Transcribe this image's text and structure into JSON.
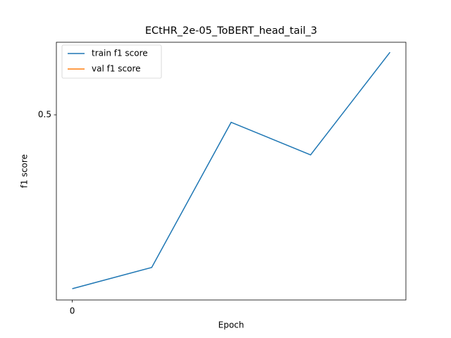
{
  "chart_data": {
    "type": "line",
    "title": "ECtHR_2e-05_ToBERT_head_tail_3",
    "xlabel": "Epoch",
    "ylabel": "f1 score",
    "x": [
      0,
      1,
      2,
      3,
      4
    ],
    "series": [
      {
        "name": "train f1 score",
        "color": "#1f77b4",
        "values": [
          0.361,
          0.378,
          0.494,
          0.468,
          0.55
        ]
      },
      {
        "name": "val f1 score",
        "color": "#ff7f0e",
        "values": [
          null,
          null,
          null,
          null,
          null
        ]
      }
    ],
    "xlim": [
      -0.2,
      4.2
    ],
    "xticks": [
      0
    ],
    "ylim": [
      0.352,
      0.558
    ],
    "yticks": [
      0.5
    ],
    "legend": "upper left"
  }
}
